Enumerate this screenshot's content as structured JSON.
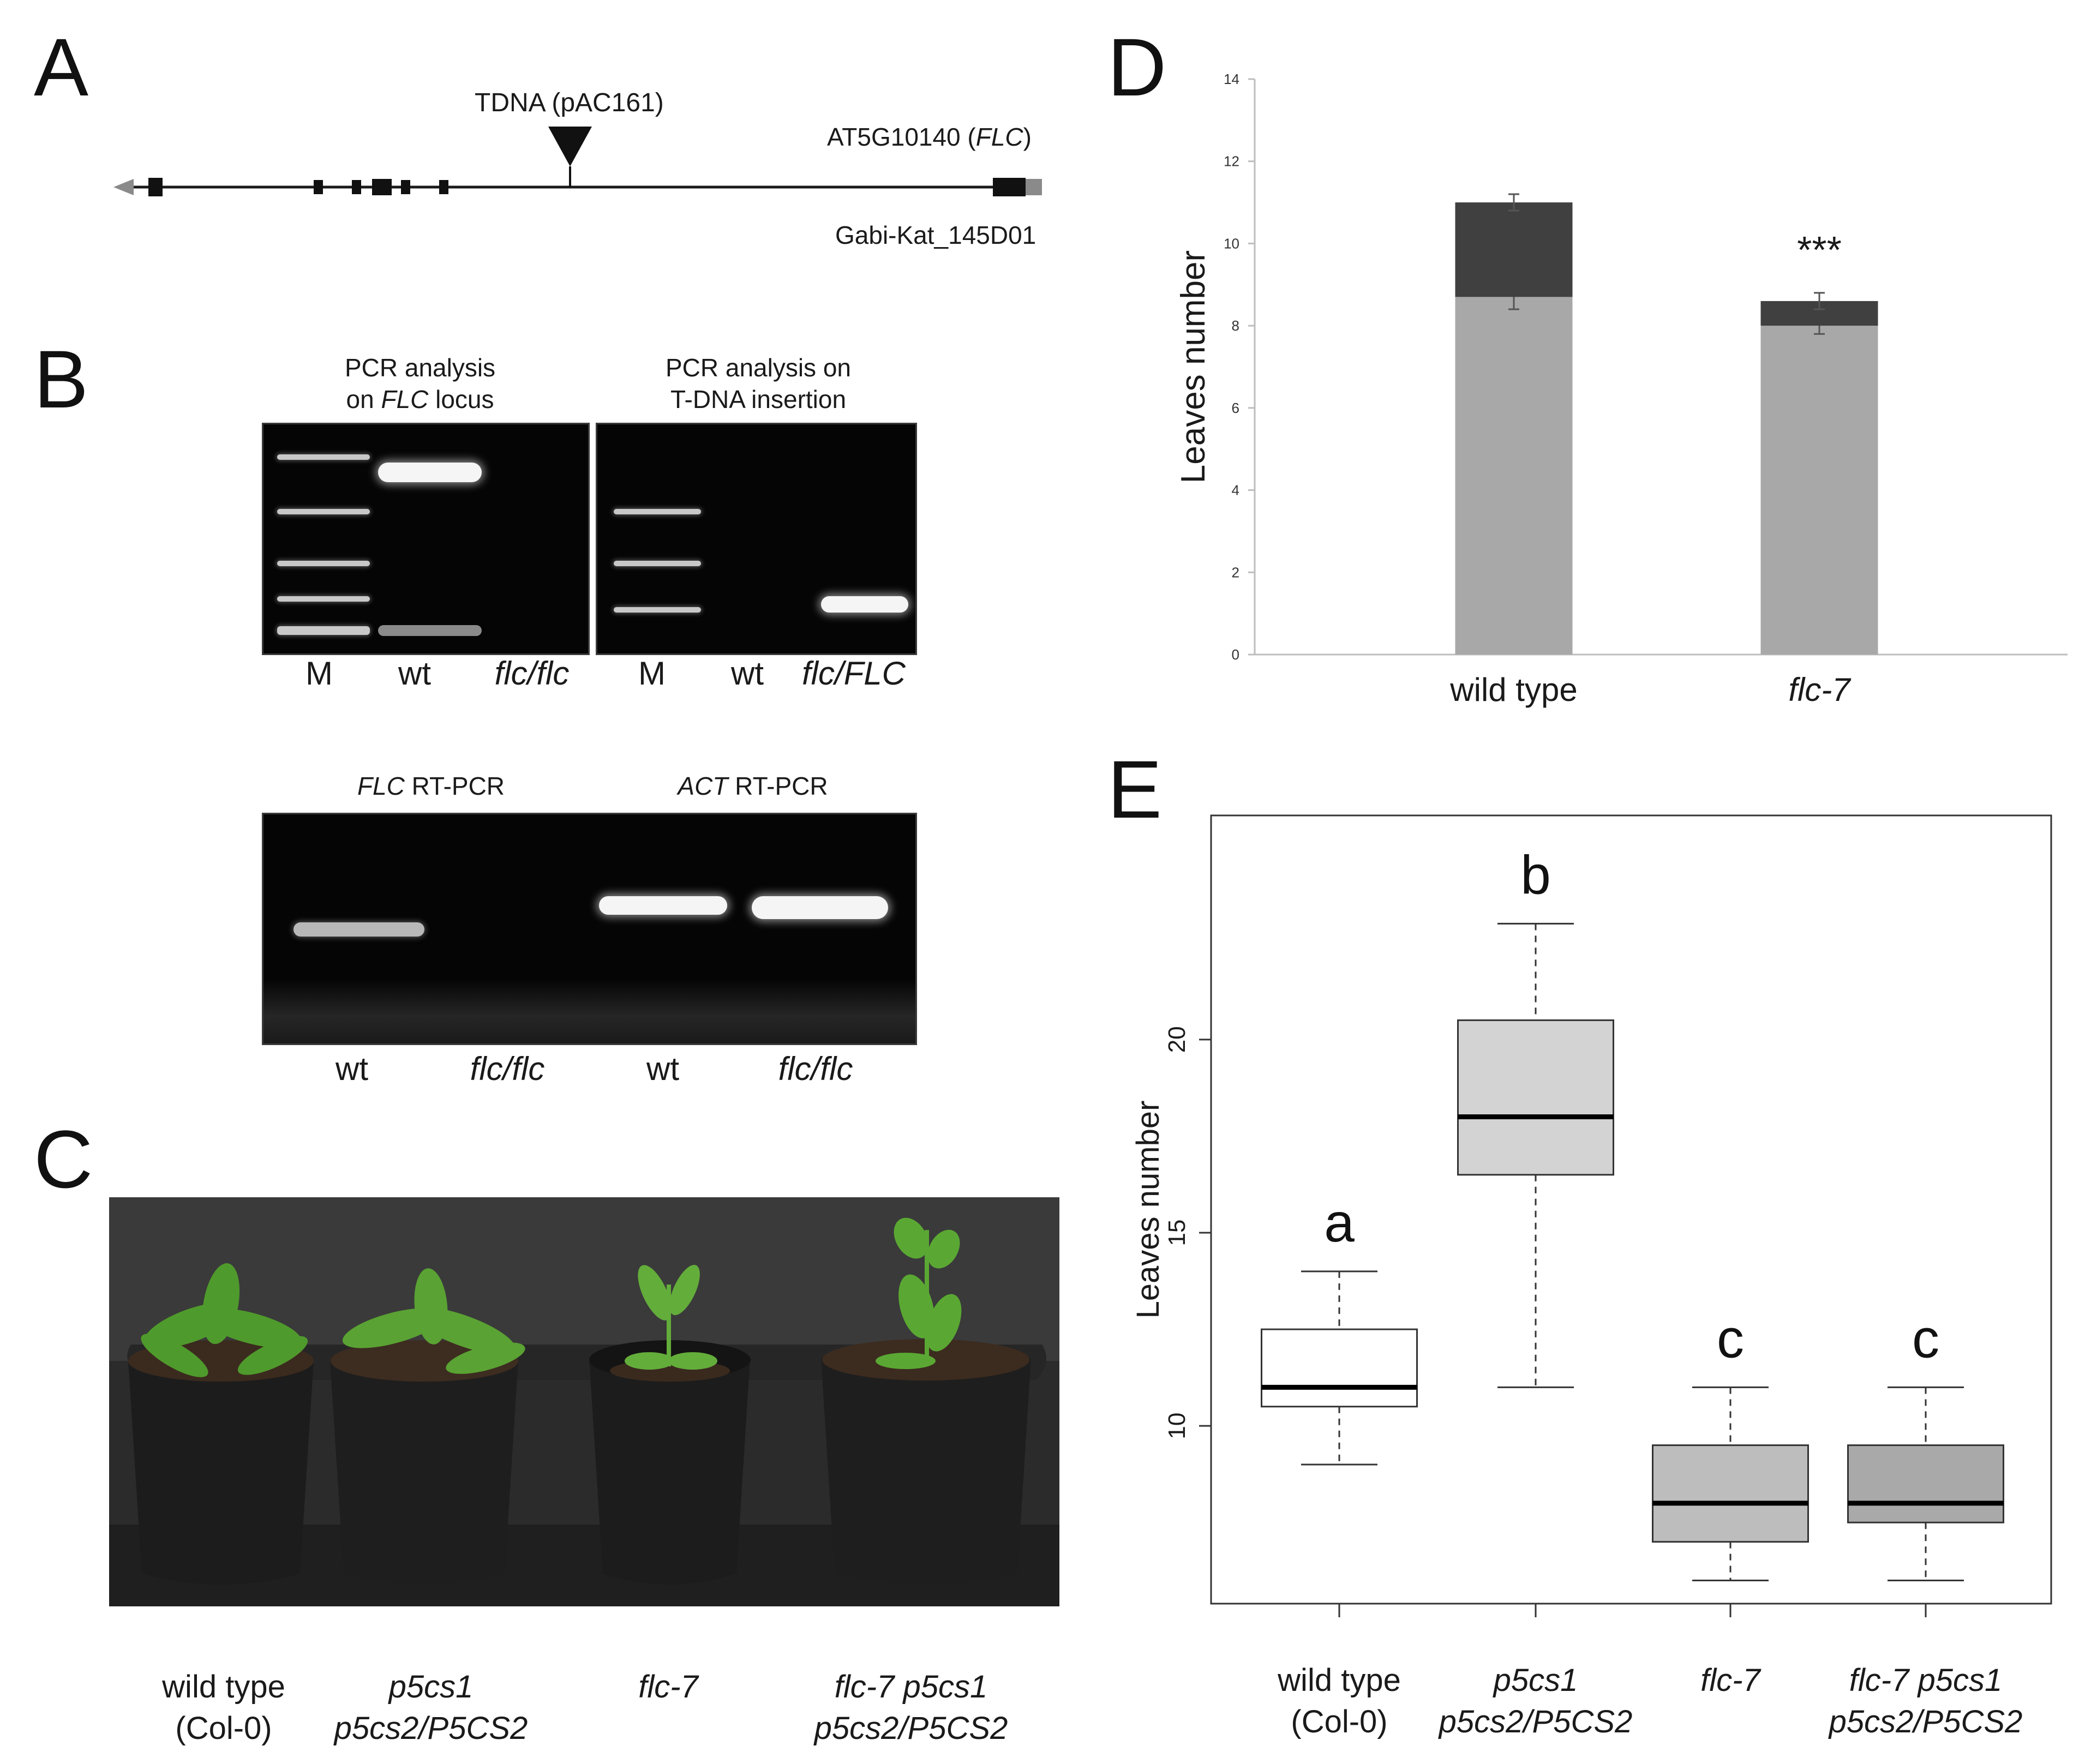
{
  "panel_labels": {
    "a": "A",
    "b": "B",
    "c": "C",
    "d": "D",
    "e": "E"
  },
  "panel_a": {
    "insertion_label": "TDNA (pAC161)",
    "gene_label_prefix": "AT5G10140 (",
    "gene_label_italic": "FLC",
    "gene_label_suffix": ")",
    "line_label": "Gabi-Kat_145D01"
  },
  "panel_b": {
    "gel1_title_line1": "PCR analysis",
    "gel1_title_line2_prefix": "on ",
    "gel1_title_line2_italic": "FLC",
    "gel1_title_line2_suffix": " locus",
    "gel2_title_line1": "PCR analysis on",
    "gel2_title_line2": "T-DNA insertion",
    "gel1_lanes": [
      "M",
      "wt",
      "flc/flc"
    ],
    "gel2_lanes": [
      "M",
      "wt",
      "flc/FLC"
    ],
    "rt1_title_italic": "FLC",
    "rt1_title_suffix": " RT-PCR",
    "rt2_title_italic": "ACT",
    "rt2_title_suffix": " RT-PCR",
    "rt_lanes": [
      "wt",
      "flc/flc",
      "wt",
      "flc/flc"
    ]
  },
  "panel_c": {
    "labels": [
      {
        "line1": "wild type",
        "line2": "(Col-0)"
      },
      {
        "line1": "p5cs1",
        "line2": "p5cs2/P5CS2"
      },
      {
        "line1": "flc-7",
        "line2": ""
      },
      {
        "line1": "flc-7 p5cs1",
        "line2": "p5cs2/P5CS2"
      }
    ]
  },
  "chart_data": [
    {
      "panel": "D",
      "type": "bar",
      "stacked": true,
      "categories": [
        "wild type",
        "flc-7"
      ],
      "series": [
        {
          "name": "lower segment",
          "color": "#a8a8a8",
          "values": [
            8.7,
            8.0
          ],
          "errors": [
            0.3,
            0.2
          ]
        },
        {
          "name": "upper segment",
          "color": "#404040",
          "values": [
            2.3,
            0.6
          ],
          "errors": [
            0.2,
            0.2
          ]
        }
      ],
      "ylabel": "Leaves number",
      "ylim": [
        0,
        14
      ],
      "yticks": [
        "0",
        "2",
        "4",
        "6",
        "8",
        "10",
        "12",
        "14"
      ],
      "annotations": [
        {
          "category": "flc-7",
          "text": "***"
        }
      ]
    },
    {
      "panel": "E",
      "type": "boxplot",
      "categories": [
        {
          "line1": "wild type",
          "line2": "(Col-0)"
        },
        {
          "line1": "p5cs1",
          "line2": "p5cs2/P5CS2"
        },
        {
          "line1": "flc-7",
          "line2": ""
        },
        {
          "line1": "flc-7 p5cs1",
          "line2": "p5cs2/P5CS2"
        }
      ],
      "boxes": [
        {
          "whisker_low": 9,
          "q1": 10.5,
          "median": 11,
          "q3": 12.5,
          "whisker_high": 14,
          "fill": "#ffffff",
          "letter": "a"
        },
        {
          "whisker_low": 11,
          "q1": 16.5,
          "median": 18,
          "q3": 20.5,
          "whisker_high": 23,
          "fill": "#d3d3d3",
          "letter": "b"
        },
        {
          "whisker_low": 6,
          "q1": 7,
          "median": 8,
          "q3": 9.5,
          "whisker_high": 11,
          "fill": "#bdbdbd",
          "letter": "c"
        },
        {
          "whisker_low": 6,
          "q1": 7.5,
          "median": 8,
          "q3": 9.5,
          "whisker_high": 11,
          "fill": "#a9a9a9",
          "letter": "c"
        }
      ],
      "ylabel": "Leaves number",
      "yticks": [
        "10",
        "15",
        "20"
      ],
      "ylim": [
        5.4,
        25.8
      ]
    }
  ]
}
